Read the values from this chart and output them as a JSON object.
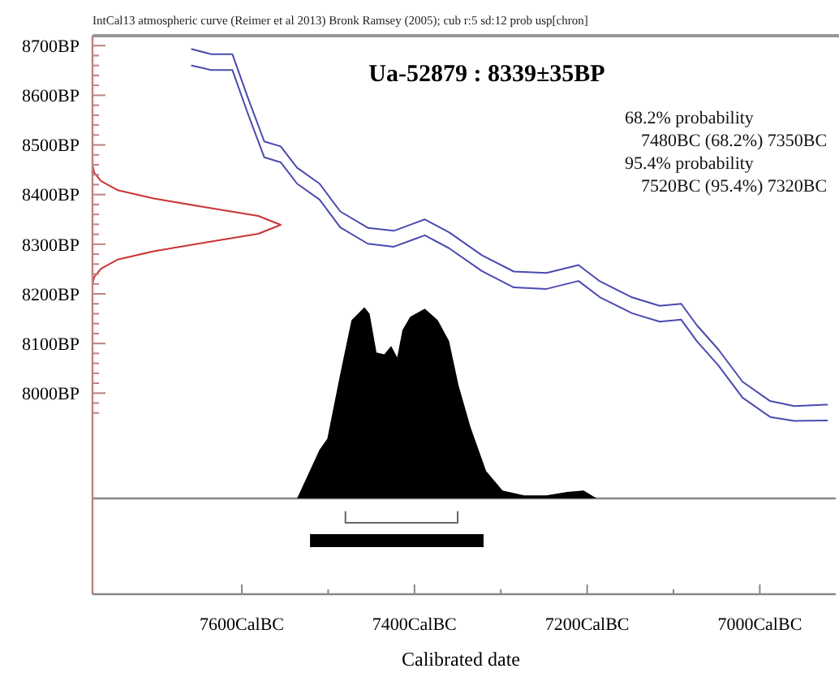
{
  "chart_data": {
    "type": "line",
    "title": "Ua-52879 : 8339±35BP",
    "subtitle": "IntCal13 atmospheric curve (Reimer et al 2013) Bronk Ramsey (2005); cub r:5 sd:12 prob usp[chron]",
    "xlabel": "Calibrated date",
    "annotations": [
      "68.2% probability",
      "7480BC (68.2%) 7350BC",
      "95.4% probability",
      "7520BC (95.4%) 7320BC"
    ],
    "xlim": [
      7773,
      6912
    ],
    "ylim": [
      7595,
      8720
    ],
    "xticks": [
      {
        "value": 7600,
        "label": "7600CalBC"
      },
      {
        "value": 7500,
        "label": null
      },
      {
        "value": 7400,
        "label": "7400CalBC"
      },
      {
        "value": 7300,
        "label": null
      },
      {
        "value": 7200,
        "label": "7200CalBC"
      },
      {
        "value": 7100,
        "label": null
      },
      {
        "value": 7000,
        "label": "7000CalBC"
      }
    ],
    "yticks": [
      {
        "value": 8000,
        "label": "8000BP"
      },
      {
        "value": 8100,
        "label": "8100BP"
      },
      {
        "value": 8200,
        "label": "8200BP"
      },
      {
        "value": 8300,
        "label": "8300BP"
      },
      {
        "value": 8400,
        "label": "8400BP"
      },
      {
        "value": 8500,
        "label": "8500BP"
      },
      {
        "value": 8600,
        "label": "8600BP"
      },
      {
        "value": 8700,
        "label": "8700BP"
      },
      {
        "value": 7960,
        "label": null
      },
      {
        "value": 7980,
        "label": null
      },
      {
        "value": 8020,
        "label": null
      },
      {
        "value": 8040,
        "label": null
      },
      {
        "value": 8060,
        "label": null
      },
      {
        "value": 8080,
        "label": null
      },
      {
        "value": 8120,
        "label": null
      },
      {
        "value": 8140,
        "label": null
      },
      {
        "value": 8160,
        "label": null
      },
      {
        "value": 8180,
        "label": null
      },
      {
        "value": 8220,
        "label": null
      },
      {
        "value": 8240,
        "label": null
      },
      {
        "value": 8260,
        "label": null
      },
      {
        "value": 8280,
        "label": null
      },
      {
        "value": 8320,
        "label": null
      },
      {
        "value": 8340,
        "label": null
      },
      {
        "value": 8360,
        "label": null
      },
      {
        "value": 8380,
        "label": null
      },
      {
        "value": 8420,
        "label": null
      },
      {
        "value": 8440,
        "label": null
      },
      {
        "value": 8460,
        "label": null
      },
      {
        "value": 8480,
        "label": null
      },
      {
        "value": 8520,
        "label": null
      },
      {
        "value": 8540,
        "label": null
      },
      {
        "value": 8560,
        "label": null
      },
      {
        "value": 8580,
        "label": null
      },
      {
        "value": 8620,
        "label": null
      },
      {
        "value": 8640,
        "label": null
      },
      {
        "value": 8660,
        "label": null
      },
      {
        "value": 8680,
        "label": null
      }
    ],
    "ref_lines": [
      {
        "axis": "y",
        "value": 7788,
        "color": "#888888"
      }
    ],
    "series": [
      {
        "color": "#4a4ab0",
        "x": [
          7658,
          7636,
          7611,
          7593,
          7574,
          7555,
          7536,
          7510,
          7486,
          7454,
          7424,
          7388,
          7360,
          7322,
          7285,
          7247,
          7210,
          7185,
          7148,
          7116,
          7091,
          7073,
          7048,
          7020,
          6988,
          6960,
          6922
        ],
        "values": [
          8693,
          8683,
          8683,
          8595,
          8507,
          8497,
          8454,
          8422,
          8366,
          8333,
          8327,
          8350,
          8324,
          8278,
          8245,
          8242,
          8258,
          8225,
          8193,
          8176,
          8180,
          8137,
          8088,
          8023,
          7984,
          7974,
          7977
        ]
      },
      {
        "color": "#4a4ab0",
        "x": [
          7658,
          7636,
          7611,
          7593,
          7574,
          7555,
          7536,
          7510,
          7486,
          7454,
          7424,
          7388,
          7360,
          7322,
          7285,
          7247,
          7210,
          7185,
          7148,
          7116,
          7091,
          7073,
          7048,
          7020,
          6988,
          6960,
          6922
        ],
        "values": [
          8660,
          8651,
          8651,
          8563,
          8475,
          8465,
          8422,
          8390,
          8334,
          8301,
          8295,
          8318,
          8292,
          8246,
          8213,
          8210,
          8226,
          8193,
          8161,
          8144,
          8148,
          8105,
          8056,
          7991,
          7952,
          7944,
          7945
        ]
      },
      {
        "color": "#cc3333",
        "x": [
          7773,
          7771,
          7763,
          7744,
          7702,
          7641,
          7581,
          7555,
          7581,
          7641,
          7702,
          7744,
          7763,
          7771,
          7773
        ],
        "values": [
          8220,
          8234,
          8251,
          8269,
          8286,
          8304,
          8321,
          8339,
          8357,
          8374,
          8392,
          8409,
          8427,
          8444,
          8460
        ]
      },
      {
        "type": "area",
        "color": "#000000",
        "x": [
          7536,
          7510,
          7501,
          7486,
          7473,
          7458,
          7452,
          7444,
          7435,
          7427,
          7420,
          7414,
          7405,
          7388,
          7373,
          7360,
          7349,
          7335,
          7317,
          7298,
          7273,
          7247,
          7223,
          7204,
          7189
        ],
        "values": [
          7788,
          7886,
          7908,
          8039,
          8147,
          8173,
          8160,
          8082,
          8078,
          8095,
          8072,
          8127,
          8154,
          8170,
          8147,
          8105,
          8016,
          7931,
          7843,
          7804,
          7794,
          7794,
          7801,
          7804,
          7788
        ]
      },
      {
        "color": "#666666",
        "x": [
          7480,
          7480,
          7350,
          7350
        ],
        "values": [
          7761,
          7739,
          7739,
          7761
        ]
      },
      {
        "type": "area",
        "color": "#000000",
        "x": [
          7521,
          7320,
          7320,
          7521,
          7521
        ],
        "values": [
          7716,
          7716,
          7690,
          7690,
          7716
        ]
      }
    ]
  }
}
